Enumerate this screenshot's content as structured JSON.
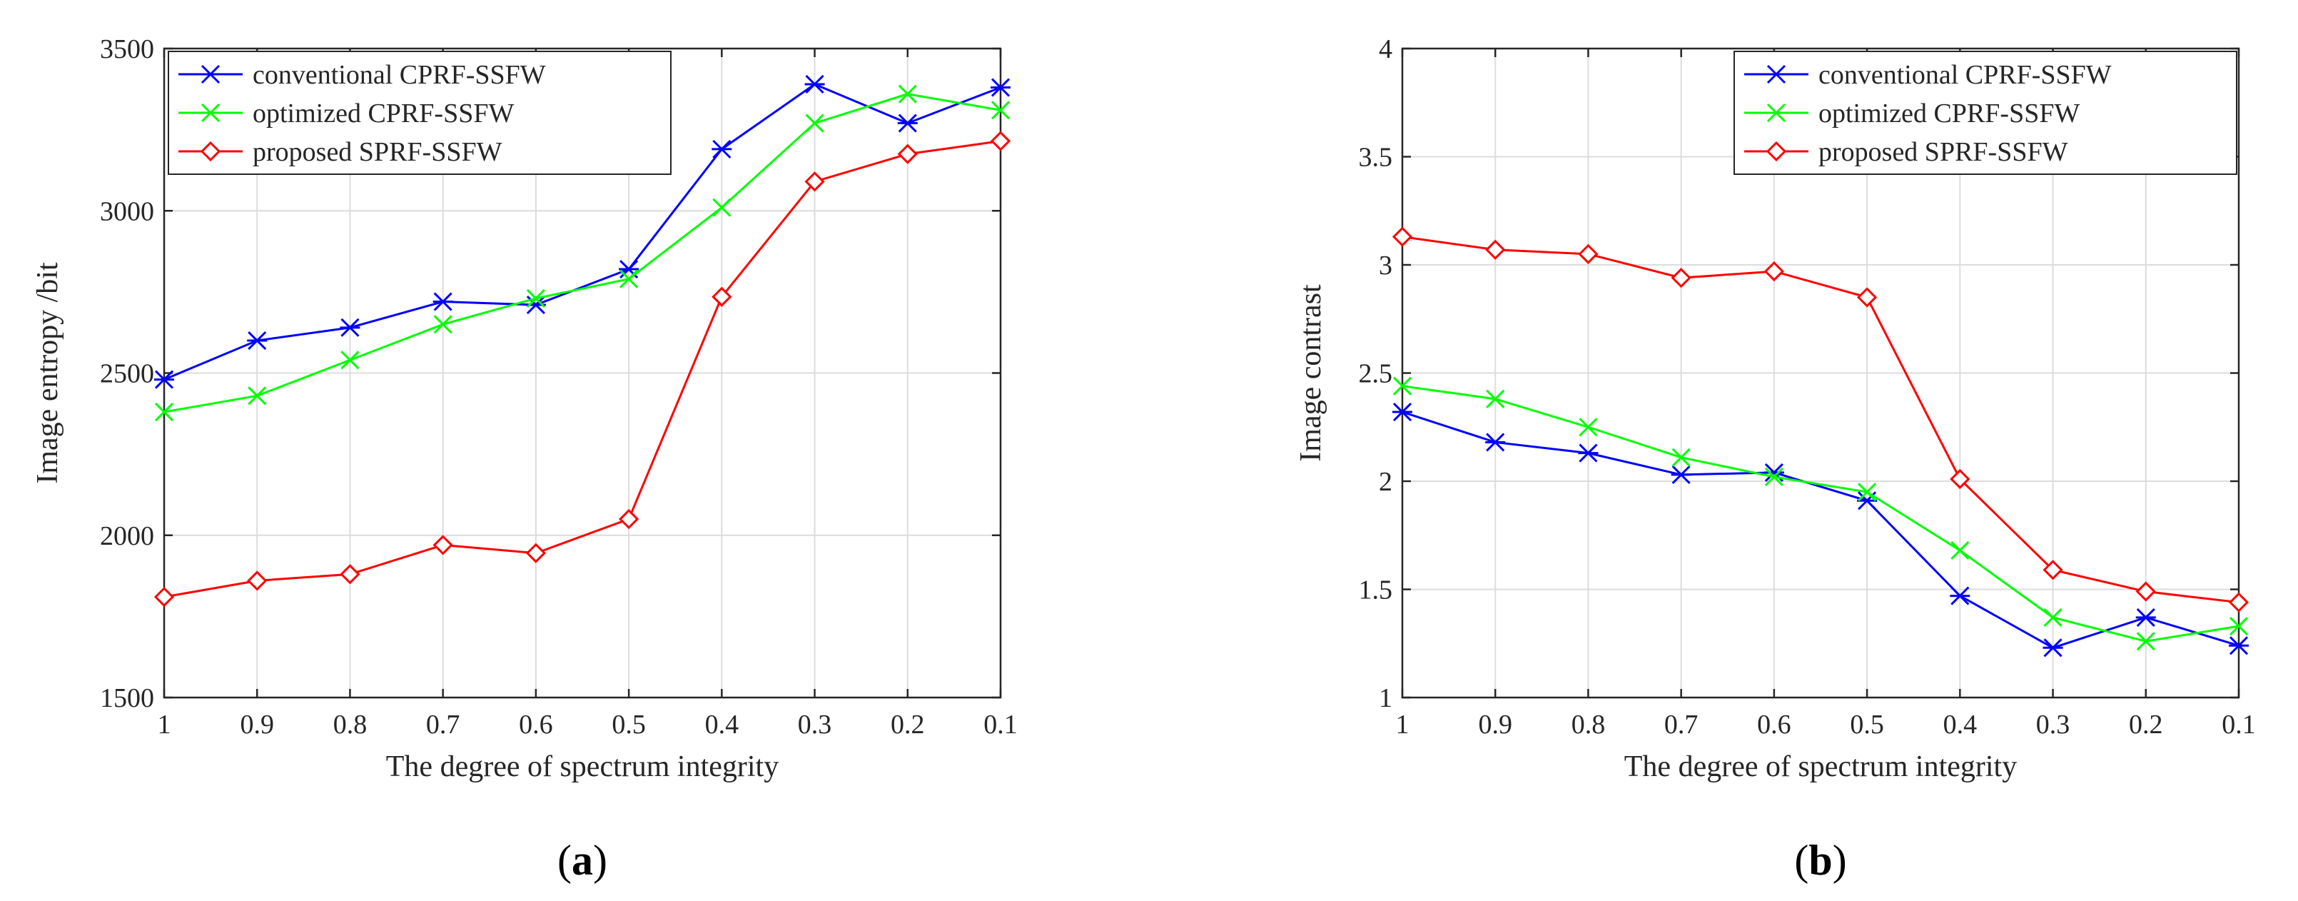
{
  "chart_data": [
    {
      "type": "line",
      "title": "",
      "caption": "(a)",
      "caption_letter": "a",
      "xlabel": "The degree of spectrum integrity",
      "ylabel": "Image entropy /bit",
      "categories": [
        "1",
        "0.9",
        "0.8",
        "0.7",
        "0.6",
        "0.5",
        "0.4",
        "0.3",
        "0.2",
        "0.1"
      ],
      "ylim": [
        1500,
        3500
      ],
      "yticks": [
        1500,
        2000,
        2500,
        3000,
        3500
      ],
      "grid": true,
      "legend_position": "top-left",
      "series": [
        {
          "name": "conventional CPRF-SSFW",
          "color": "#0000ff",
          "marker": "asterisk",
          "values": [
            2480,
            2600,
            2640,
            2720,
            2710,
            2820,
            3190,
            3390,
            3270,
            3380
          ]
        },
        {
          "name": "optimized CPRF-SSFW",
          "color": "#00ff00",
          "marker": "x",
          "values": [
            2380,
            2430,
            2540,
            2650,
            2730,
            2790,
            3010,
            3270,
            3360,
            3310
          ]
        },
        {
          "name": "proposed SPRF-SSFW",
          "color": "#ff0000",
          "marker": "diamond",
          "values": [
            1810,
            1860,
            1880,
            1970,
            1945,
            2050,
            2735,
            3090,
            3175,
            3215
          ]
        }
      ]
    },
    {
      "type": "line",
      "title": "",
      "caption": "(b)",
      "caption_letter": "b",
      "xlabel": "The degree of spectrum integrity",
      "ylabel": "Image contrast",
      "categories": [
        "1",
        "0.9",
        "0.8",
        "0.7",
        "0.6",
        "0.5",
        "0.4",
        "0.3",
        "0.2",
        "0.1"
      ],
      "ylim": [
        1,
        4
      ],
      "yticks": [
        "1",
        "1.5",
        "2",
        "2.5",
        "3",
        "3.5",
        "4"
      ],
      "grid": true,
      "legend_position": "top-right",
      "series": [
        {
          "name": "conventional CPRF-SSFW",
          "color": "#0000ff",
          "marker": "asterisk",
          "values": [
            2.32,
            2.18,
            2.13,
            2.03,
            2.04,
            1.91,
            1.47,
            1.23,
            1.37,
            1.24
          ]
        },
        {
          "name": "optimized CPRF-SSFW",
          "color": "#00ff00",
          "marker": "x",
          "values": [
            2.44,
            2.38,
            2.25,
            2.11,
            2.02,
            1.95,
            1.68,
            1.37,
            1.26,
            1.33
          ]
        },
        {
          "name": "proposed SPRF-SSFW",
          "color": "#ff0000",
          "marker": "diamond",
          "values": [
            3.13,
            3.07,
            3.05,
            2.94,
            2.97,
            2.85,
            2.01,
            1.59,
            1.49,
            1.44
          ]
        }
      ]
    }
  ]
}
